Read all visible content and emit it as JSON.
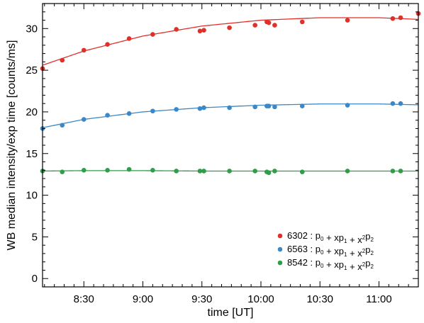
{
  "chart_data": {
    "type": "scatter",
    "title": "",
    "xlabel": "time [UT]",
    "ylabel": "WB median intensity/exp time [counts/ms]",
    "xlim": [
      "08:09",
      "11:20"
    ],
    "ylim": [
      -1,
      33
    ],
    "x_ticks": [
      "8:30",
      "9:00",
      "9:30",
      "10:00",
      "10:30",
      "11:00"
    ],
    "y_ticks": [
      0,
      5,
      10,
      15,
      20,
      25,
      30
    ],
    "grid": false,
    "legend_position": "bottom-right",
    "fit_model": "p0 + xp1 + x^2p2",
    "series": [
      {
        "name": "6302",
        "color": "#e0302a",
        "legend_label": {
          "wavelength": "6302",
          "formula": ": p0 + xp1 + x2p2"
        },
        "fit": {
          "x": [
            "08:09",
            "08:30",
            "09:00",
            "09:30",
            "10:00",
            "10:30",
            "11:00",
            "11:20"
          ],
          "y": [
            25.6,
            27.3,
            29.1,
            30.3,
            31.0,
            31.3,
            31.3,
            31.1
          ]
        },
        "points": [
          {
            "x": "08:09",
            "y": 25.2
          },
          {
            "x": "08:19",
            "y": 26.2
          },
          {
            "x": "08:30",
            "y": 27.4
          },
          {
            "x": "08:42",
            "y": 28.1
          },
          {
            "x": "08:53",
            "y": 28.8
          },
          {
            "x": "09:05",
            "y": 29.3
          },
          {
            "x": "09:17",
            "y": 29.9
          },
          {
            "x": "09:29",
            "y": 29.7
          },
          {
            "x": "09:31",
            "y": 29.8
          },
          {
            "x": "09:44",
            "y": 30.1
          },
          {
            "x": "09:57",
            "y": 30.4
          },
          {
            "x": "10:03",
            "y": 30.8
          },
          {
            "x": "10:04",
            "y": 30.7
          },
          {
            "x": "10:07",
            "y": 30.4
          },
          {
            "x": "10:21",
            "y": 30.8
          },
          {
            "x": "10:44",
            "y": 31.0
          },
          {
            "x": "11:07",
            "y": 31.2
          },
          {
            "x": "11:11",
            "y": 31.3
          },
          {
            "x": "11:20",
            "y": 31.8
          }
        ]
      },
      {
        "name": "6563",
        "color": "#3a88c8",
        "legend_label": {
          "wavelength": "6563",
          "formula": ": p0 + xp1 + x2p2"
        },
        "fit": {
          "x": [
            "08:09",
            "08:30",
            "09:00",
            "09:30",
            "10:00",
            "10:30",
            "11:00",
            "11:20"
          ],
          "y": [
            18.1,
            19.1,
            20.0,
            20.5,
            20.8,
            20.95,
            20.95,
            20.85
          ]
        },
        "points": [
          {
            "x": "08:09",
            "y": 18.0
          },
          {
            "x": "08:19",
            "y": 18.4
          },
          {
            "x": "08:30",
            "y": 19.1
          },
          {
            "x": "08:42",
            "y": 19.6
          },
          {
            "x": "08:53",
            "y": 19.8
          },
          {
            "x": "09:05",
            "y": 20.1
          },
          {
            "x": "09:17",
            "y": 20.3
          },
          {
            "x": "09:29",
            "y": 20.4
          },
          {
            "x": "09:31",
            "y": 20.5
          },
          {
            "x": "09:44",
            "y": 20.5
          },
          {
            "x": "09:57",
            "y": 20.6
          },
          {
            "x": "10:03",
            "y": 20.7
          },
          {
            "x": "10:04",
            "y": 20.7
          },
          {
            "x": "10:07",
            "y": 20.6
          },
          {
            "x": "10:21",
            "y": 20.7
          },
          {
            "x": "10:44",
            "y": 20.8
          },
          {
            "x": "11:07",
            "y": 21.0
          },
          {
            "x": "11:11",
            "y": 21.0
          }
        ]
      },
      {
        "name": "8542",
        "color": "#2e9e48",
        "legend_label": {
          "wavelength": "8542",
          "formula": ": p0 + xp1 + x2p2"
        },
        "fit": {
          "x": [
            "08:09",
            "08:30",
            "09:00",
            "09:30",
            "10:00",
            "10:30",
            "11:00",
            "11:20"
          ],
          "y": [
            12.9,
            12.95,
            12.95,
            12.9,
            12.9,
            12.9,
            12.9,
            12.9
          ]
        },
        "points": [
          {
            "x": "08:09",
            "y": 12.9
          },
          {
            "x": "08:19",
            "y": 12.8
          },
          {
            "x": "08:30",
            "y": 13.0
          },
          {
            "x": "08:42",
            "y": 13.0
          },
          {
            "x": "08:53",
            "y": 13.1
          },
          {
            "x": "09:05",
            "y": 13.0
          },
          {
            "x": "09:17",
            "y": 12.9
          },
          {
            "x": "09:29",
            "y": 12.9
          },
          {
            "x": "09:31",
            "y": 12.9
          },
          {
            "x": "09:44",
            "y": 12.9
          },
          {
            "x": "09:57",
            "y": 12.9
          },
          {
            "x": "10:03",
            "y": 12.8
          },
          {
            "x": "10:04",
            "y": 12.7
          },
          {
            "x": "10:07",
            "y": 12.9
          },
          {
            "x": "10:21",
            "y": 12.8
          },
          {
            "x": "10:44",
            "y": 12.9
          },
          {
            "x": "11:07",
            "y": 12.9
          },
          {
            "x": "11:11",
            "y": 12.9
          }
        ]
      }
    ]
  }
}
